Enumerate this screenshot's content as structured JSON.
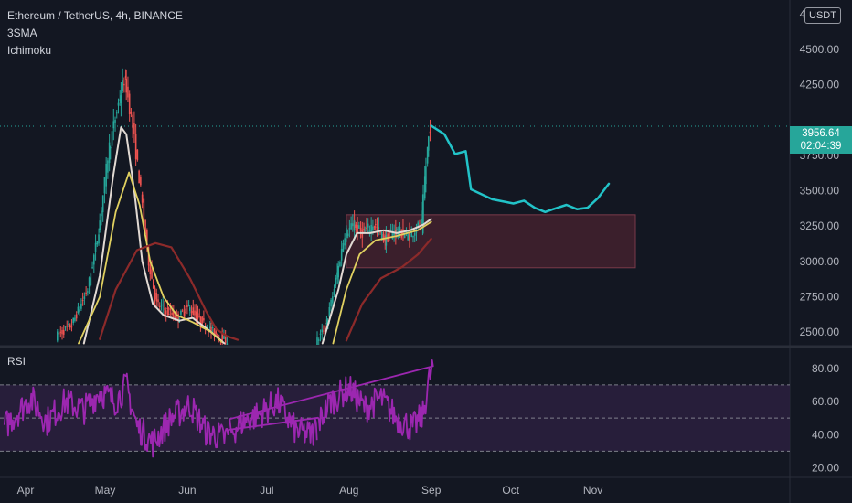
{
  "header": {
    "symbol_line": "Ethereum / TetherUS, 4h, BINANCE",
    "indicator_1": "3SMA",
    "indicator_2": "Ichimoku"
  },
  "currency_button": "USDT",
  "last_price": {
    "value": "3956.64",
    "countdown": "02:04:39",
    "color": "#26a69a"
  },
  "rsi_panel": {
    "label": "RSI"
  },
  "colors": {
    "background": "#131722",
    "up_candle": "#26a69a",
    "down_candle": "#ef5350",
    "sma_fast": "#e1d9d3",
    "sma_mid": "#e0d060",
    "sma_slow": "#8c2a2a",
    "projection": "#22c3c8",
    "zone_fill": "#4a2330",
    "rsi_line": "#9c27b0",
    "rsi_band": "#2a1f3d"
  },
  "chart_data": [
    {
      "type": "candlestick",
      "title": "Ethereum / TetherUS, 4h, BINANCE",
      "x_ticks": [
        "Apr",
        "May",
        "Jun",
        "Jul",
        "Aug",
        "Sep",
        "Oct",
        "Nov"
      ],
      "x_tick_days": [
        0,
        30,
        61,
        91,
        122,
        153,
        183,
        214
      ],
      "y_ticks": [
        2500,
        2750,
        3000,
        3250,
        3500,
        3750,
        4250,
        4500,
        4750
      ],
      "y_range": [
        2410,
        4850
      ],
      "last_price": 3956.64,
      "price_path": [
        [
          -8,
          2420
        ],
        [
          12,
          2470
        ],
        [
          18,
          2550
        ],
        [
          24,
          2800
        ],
        [
          28,
          3200
        ],
        [
          32,
          3800
        ],
        [
          36,
          4150
        ],
        [
          38,
          4300
        ],
        [
          41,
          3950
        ],
        [
          44,
          3500
        ],
        [
          47,
          3000
        ],
        [
          50,
          2700
        ],
        [
          54,
          2650
        ],
        [
          58,
          2600
        ],
        [
          62,
          2680
        ],
        [
          66,
          2590
        ],
        [
          70,
          2520
        ],
        [
          76,
          2440
        ],
        [
          110,
          2420
        ],
        [
          114,
          2550
        ],
        [
          118,
          2900
        ],
        [
          121,
          3200
        ],
        [
          124,
          3250
        ],
        [
          128,
          3200
        ],
        [
          132,
          3270
        ],
        [
          136,
          3150
        ],
        [
          140,
          3220
        ],
        [
          145,
          3180
        ],
        [
          150,
          3270
        ],
        [
          151,
          3550
        ],
        [
          152,
          3760
        ],
        [
          153,
          3956.64
        ]
      ],
      "series": [
        {
          "name": "SMA fast",
          "points": [
            [
              22,
              2420
            ],
            [
              28,
              2900
            ],
            [
              33,
              3600
            ],
            [
              36,
              3950
            ],
            [
              38,
              3900
            ],
            [
              41,
              3500
            ],
            [
              44,
              3000
            ],
            [
              48,
              2700
            ],
            [
              52,
              2620
            ],
            [
              58,
              2580
            ],
            [
              63,
              2600
            ],
            [
              70,
              2500
            ],
            [
              75,
              2420
            ],
            [
              112,
              2420
            ],
            [
              118,
              2800
            ],
            [
              121,
              3050
            ],
            [
              125,
              3200
            ],
            [
              130,
              3200
            ],
            [
              135,
              3220
            ],
            [
              140,
              3200
            ],
            [
              145,
              3220
            ],
            [
              150,
              3260
            ],
            [
              153,
              3300
            ]
          ]
        },
        {
          "name": "SMA mid",
          "points": [
            [
              20,
              2420
            ],
            [
              28,
              2750
            ],
            [
              34,
              3350
            ],
            [
              39,
              3630
            ],
            [
              43,
              3400
            ],
            [
              47,
              3000
            ],
            [
              52,
              2750
            ],
            [
              57,
              2620
            ],
            [
              63,
              2570
            ],
            [
              70,
              2500
            ],
            [
              74,
              2430
            ],
            [
              116,
              2420
            ],
            [
              121,
              2800
            ],
            [
              126,
              3050
            ],
            [
              132,
              3150
            ],
            [
              140,
              3180
            ],
            [
              148,
              3220
            ],
            [
              153,
              3280
            ]
          ]
        },
        {
          "name": "SMA slow",
          "points": [
            [
              28,
              2450
            ],
            [
              34,
              2800
            ],
            [
              42,
              3080
            ],
            [
              49,
              3130
            ],
            [
              55,
              3100
            ],
            [
              62,
              2880
            ],
            [
              68,
              2650
            ],
            [
              72,
              2520
            ],
            [
              76,
              2470
            ],
            [
              80,
              2445
            ],
            [
              121,
              2440
            ],
            [
              127,
              2700
            ],
            [
              134,
              2880
            ],
            [
              142,
              2960
            ],
            [
              148,
              3050
            ],
            [
              153,
              3160
            ]
          ]
        },
        {
          "name": "Projection",
          "points": [
            [
              153,
              3960
            ],
            [
              158,
              3900
            ],
            [
              162,
              3760
            ],
            [
              166,
              3780
            ],
            [
              168,
              3510
            ],
            [
              176,
              3440
            ],
            [
              184,
              3410
            ],
            [
              188,
              3430
            ],
            [
              192,
              3380
            ],
            [
              196,
              3350
            ],
            [
              199,
              3370
            ],
            [
              204,
              3400
            ],
            [
              208,
              3370
            ],
            [
              212,
              3380
            ],
            [
              216,
              3450
            ],
            [
              220,
              3550
            ]
          ]
        }
      ],
      "zone": {
        "from_day": 121,
        "to_day": 230,
        "price_low": 2955,
        "price_high": 3330
      }
    },
    {
      "type": "line",
      "title": "RSI",
      "y_ticks": [
        20,
        40,
        60,
        80
      ],
      "y_range": [
        17,
        92
      ],
      "band": [
        30,
        70
      ],
      "mid_line": 50,
      "rsi_path": [
        [
          -8,
          45
        ],
        [
          2,
          62
        ],
        [
          8,
          48
        ],
        [
          15,
          60
        ],
        [
          22,
          55
        ],
        [
          28,
          66
        ],
        [
          34,
          60
        ],
        [
          38,
          70
        ],
        [
          42,
          45
        ],
        [
          48,
          35
        ],
        [
          55,
          50
        ],
        [
          62,
          58
        ],
        [
          68,
          42
        ],
        [
          75,
          38
        ],
        [
          82,
          48
        ],
        [
          88,
          52
        ],
        [
          95,
          60
        ],
        [
          102,
          42
        ],
        [
          108,
          40
        ],
        [
          115,
          60
        ],
        [
          122,
          68
        ],
        [
          128,
          56
        ],
        [
          134,
          62
        ],
        [
          140,
          50
        ],
        [
          146,
          44
        ],
        [
          150,
          52
        ],
        [
          152,
          72
        ],
        [
          154,
          83
        ]
      ]
    }
  ]
}
